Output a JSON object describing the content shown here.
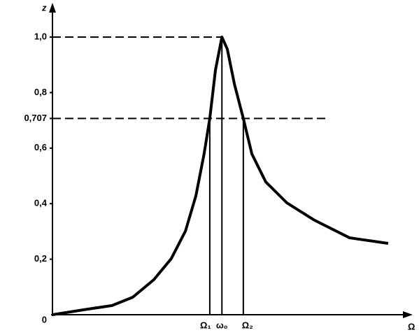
{
  "chart_data": {
    "type": "line",
    "ylabel": "z",
    "xlabel": "Ω",
    "x": [
      0,
      8.8,
      16.7,
      22.5,
      28.4,
      33.3,
      37.3,
      40.2,
      42.5,
      44.1,
      45.7,
      47.5,
      49.0,
      51.0,
      53.5,
      55.9,
      59.8,
      65.7,
      73.5,
      83.3,
      94.1
    ],
    "values": [
      0,
      0.018,
      0.033,
      0.063,
      0.126,
      0.202,
      0.302,
      0.428,
      0.579,
      0.707,
      0.882,
      1.0,
      0.957,
      0.831,
      0.707,
      0.579,
      0.478,
      0.403,
      0.34,
      0.277,
      0.257
    ],
    "color": "#000000",
    "xlim": [
      0,
      100
    ],
    "ylim": [
      0,
      1.1
    ],
    "yticks": [
      0,
      {
        "value": 0.2,
        "label": "0,2"
      },
      {
        "value": 0.4,
        "label": "0,4"
      },
      {
        "value": 0.6,
        "label": "0,6"
      },
      {
        "value": 0.707,
        "label": "0,707"
      },
      {
        "value": 0.8,
        "label": "0,8"
      },
      {
        "value": 1.0,
        "label": "1,0"
      }
    ],
    "markers": [
      {
        "label": "Ω₁",
        "x": 44.1,
        "y": 0.707
      },
      {
        "label": "ω₀",
        "x": 47.5,
        "y": 1.0
      },
      {
        "label": "Ω₂",
        "x": 53.5,
        "y": 0.707
      }
    ]
  }
}
